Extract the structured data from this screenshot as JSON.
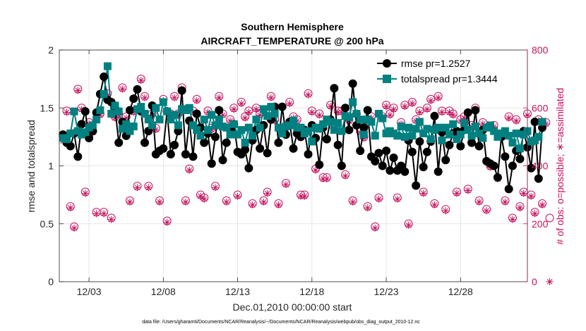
{
  "chart_data": {
    "type": "line",
    "title": "Southern Hemisphere",
    "subtitle": "AIRCRAFT_TEMPERATURE @ 200 hPa",
    "xlabel": "Dec.01,2010 00:00:00 start",
    "ylabel": "rmse and totalspread",
    "ylabel_right": "# of obs: o=possible; ∗=assimilated",
    "xlim": [
      1,
      32.5
    ],
    "ylim": [
      0,
      2
    ],
    "ylim_right": [
      0,
      800
    ],
    "xticks": [
      3,
      8,
      13,
      18,
      23,
      28
    ],
    "xtick_labels": [
      "12/03",
      "12/08",
      "12/13",
      "12/18",
      "12/23",
      "12/28"
    ],
    "yticks": [
      0,
      0.5,
      1,
      1.5,
      2
    ],
    "ytick_labels": [
      "0",
      "0.5",
      "1",
      "1.5",
      "2"
    ],
    "yticks_right": [
      0,
      200,
      400,
      600,
      800
    ],
    "ytick_labels_right": [
      "0",
      "200",
      "400",
      "600",
      "800"
    ],
    "grid": true,
    "legend_position": "top-right",
    "colors": {
      "rmse": "#000000",
      "totalspread": "#008080",
      "obs": "#c4135e"
    },
    "series": [
      {
        "name": "rmse pr=1.2527",
        "axis": "left",
        "values": [
          1.27,
          1.2,
          1.17,
          1.28,
          1.08,
          1.36,
          1.47,
          1.24,
          1.3,
          1.46,
          1.62,
          1.77,
          1.57,
          1.55,
          1.5,
          1.2,
          1.38,
          1.26,
          1.48,
          1.58,
          1.66,
          1.47,
          1.2,
          1.3,
          1.52,
          1.1,
          1.13,
          1.15,
          1.47,
          1.1,
          1.18,
          1.3,
          1.65,
          1.1,
          1.39,
          1.08,
          1.45,
          1.33,
          1.2,
          1.28,
          1.02,
          1.25,
          1.48,
          1.05,
          1.2,
          1.32,
          1.36,
          1.12,
          1.1,
          1.14,
          0.98,
          1.22,
          1.31,
          1.15,
          1.35,
          1.11,
          1.4,
          1.51,
          1.2,
          1.51,
          1.27,
          1.38,
          1.15,
          1.28,
          1.25,
          1.31,
          1.1,
          1.35,
          1.24,
          1.01,
          1.33,
          1.23,
          1.4,
          1.67,
          1.18,
          1.0,
          1.5,
          1.31,
          1.71,
          1.35,
          1.13,
          1.33,
          1.48,
          1.08,
          1.04,
          1.11,
          1.0,
          1.13,
          0.96,
          1.07,
          0.96,
          1.0,
          0.95,
          1.22,
          1.12,
          0.83,
          1.21,
          0.99,
          1.12,
          1.21,
          1.43,
          0.95,
          1.29,
          1.05,
          1.18,
          1.28,
          1.3,
          1.17,
          1.31,
          1.46,
          1.2,
          1.48,
          1.17,
          1.31,
          1.04,
          1.02,
          1.0,
          0.9,
          1.25,
          1.08,
          0.8,
          1.0,
          1.13,
          1.06,
          1.3,
          1.16,
          0.98,
          1.38,
          0.89,
          1.33
        ],
        "x_start": 1.25,
        "x_step": 0.25
      },
      {
        "name": "totalspread pr=1.3444",
        "axis": "left",
        "values": [
          1.24,
          1.23,
          1.28,
          1.47,
          1.3,
          1.27,
          1.29,
          1.33,
          1.35,
          1.4,
          1.48,
          1.62,
          1.86,
          1.45,
          1.52,
          1.47,
          1.32,
          1.36,
          1.3,
          1.34,
          1.49,
          1.51,
          1.45,
          1.4,
          1.35,
          1.5,
          1.4,
          1.55,
          1.47,
          1.4,
          1.44,
          1.35,
          1.49,
          1.48,
          1.5,
          1.35,
          1.31,
          1.26,
          1.4,
          1.31,
          1.44,
          1.35,
          1.4,
          1.34,
          1.33,
          1.27,
          1.36,
          1.27,
          1.31,
          1.2,
          1.33,
          1.26,
          1.4,
          1.33,
          1.49,
          1.43,
          1.51,
          1.45,
          1.33,
          1.28,
          1.34,
          1.35,
          1.39,
          1.33,
          1.33,
          1.28,
          1.3,
          1.21,
          1.33,
          1.32,
          1.36,
          1.4,
          1.38,
          1.31,
          1.37,
          1.3,
          1.43,
          1.42,
          1.55,
          1.45,
          1.4,
          1.27,
          1.4,
          1.38,
          1.26,
          1.45,
          1.41,
          1.28,
          1.3,
          1.28,
          1.26,
          1.34,
          1.25,
          1.33,
          1.26,
          1.32,
          1.38,
          1.28,
          1.32,
          1.23,
          1.31,
          1.33,
          1.22,
          1.33,
          1.27,
          1.36,
          1.23,
          1.27,
          1.37,
          1.31,
          1.26,
          1.34,
          1.28,
          1.24,
          1.33,
          1.35,
          1.3,
          1.25,
          1.28,
          1.3,
          1.26,
          1.2,
          1.28,
          1.15,
          1.27,
          1.3,
          1.21,
          1.22,
          1.25,
          1.38
        ],
        "x_start": 1.25,
        "x_step": 0.25
      },
      {
        "name": "possible",
        "axis": "right",
        "marker": "circle",
        "values": [
          500,
          590,
          260,
          190,
          665,
          600,
          310,
          550,
          520,
          240,
          580,
          240,
          650,
          220,
          570,
          580,
          670,
          570,
          280,
          590,
          330,
          700,
          640,
          330,
          580,
          530,
          280,
          630,
          210,
          580,
          640,
          580,
          670,
          280,
          390,
          590,
          630,
          300,
          290,
          590,
          530,
          330,
          640,
          580,
          280,
          560,
          600,
          300,
          620,
          570,
          590,
          270,
          600,
          580,
          280,
          310,
          640,
          560,
          270,
          530,
          340,
          620,
          570,
          560,
          300,
          300,
          650,
          590,
          390,
          580,
          360,
          360,
          610,
          530,
          590,
          590,
          370,
          560,
          280,
          580,
          520,
          500,
          260,
          570,
          190,
          290,
          570,
          610,
          580,
          600,
          290,
          550,
          610,
          200,
          620,
          560,
          590,
          310,
          600,
          630,
          270,
          640,
          590,
          250,
          590,
          580,
          310,
          560,
          570,
          320,
          540,
          600,
          280,
          550,
          250,
          400,
          540,
          360,
          510,
          280,
          570,
          220,
          560,
          260,
          310,
          580,
          300,
          240,
          560,
          270,
          550,
          220
        ],
        "x_start": 1.25,
        "x_step": 0.25
      },
      {
        "name": "assimilated",
        "axis": "right",
        "marker": "asterisk",
        "values": [
          485,
          585,
          255,
          185,
          660,
          595,
          305,
          545,
          515,
          235,
          575,
          235,
          645,
          215,
          565,
          575,
          665,
          565,
          275,
          585,
          325,
          695,
          635,
          325,
          575,
          525,
          275,
          625,
          205,
          575,
          635,
          575,
          665,
          275,
          385,
          585,
          625,
          295,
          285,
          585,
          525,
          325,
          635,
          575,
          275,
          555,
          595,
          295,
          615,
          565,
          585,
          265,
          595,
          575,
          275,
          305,
          635,
          555,
          265,
          525,
          335,
          615,
          565,
          555,
          295,
          295,
          645,
          585,
          385,
          575,
          355,
          355,
          605,
          525,
          585,
          585,
          365,
          555,
          275,
          575,
          515,
          495,
          255,
          565,
          185,
          285,
          565,
          605,
          575,
          595,
          285,
          545,
          605,
          195,
          615,
          555,
          585,
          305,
          595,
          625,
          265,
          635,
          585,
          245,
          585,
          575,
          305,
          555,
          565,
          315,
          535,
          595,
          275,
          545,
          245,
          395,
          535,
          355,
          505,
          275,
          565,
          215,
          555,
          255,
          305,
          575,
          295,
          235,
          555,
          265,
          545,
          0
        ],
        "x_start": 1.25,
        "x_step": 0.25
      }
    ]
  },
  "footer": "data file: /Users/gharamti/Documents/NCAR/Reanalysis/~/Documents/NCAR/Reanalysis/webpub/obs_diag_output_2010-12.nc"
}
